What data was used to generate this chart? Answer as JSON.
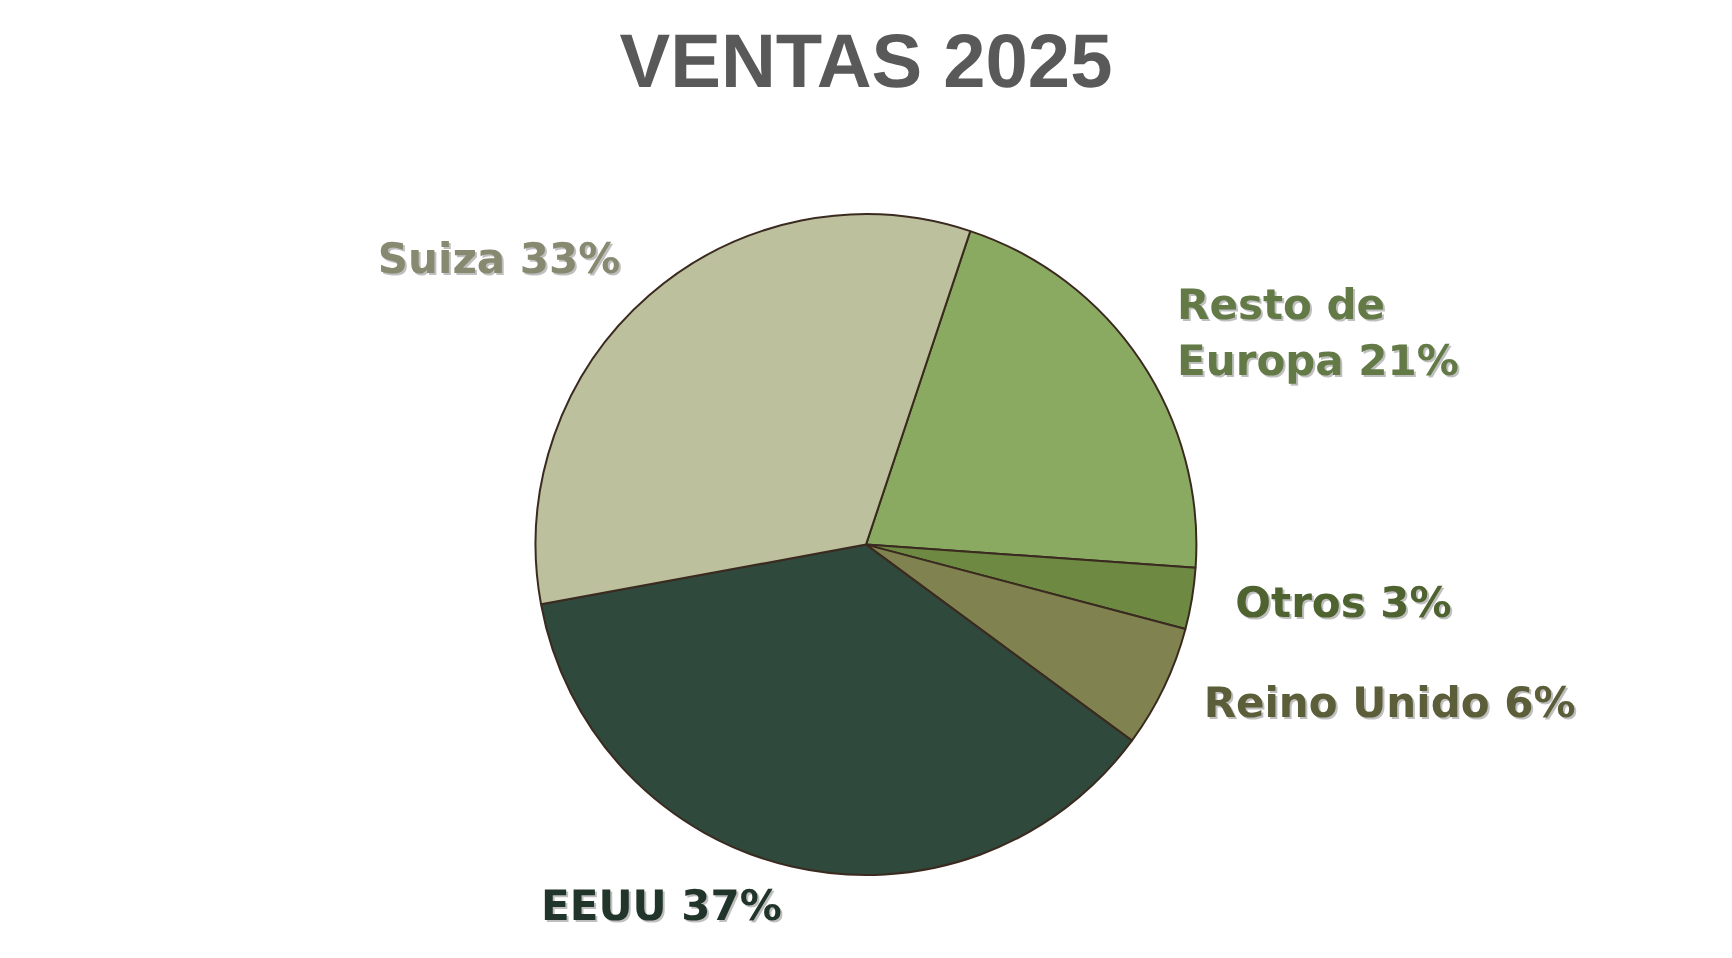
{
  "chart_data": {
    "type": "pie",
    "title": "VENTAS 2025",
    "categories": [
      "Resto de Europa",
      "Otros",
      "Reino Unido",
      "EEUU",
      "Suiza"
    ],
    "values": [
      21,
      3,
      6,
      37,
      33
    ],
    "value_labels": [
      "21%",
      "3%",
      "6%",
      "37%",
      "33%"
    ],
    "colors": [
      "#8aaa62",
      "#6e8a42",
      "#808350",
      "#2f4a3c",
      "#bcc09c"
    ],
    "legend": false
  }
}
